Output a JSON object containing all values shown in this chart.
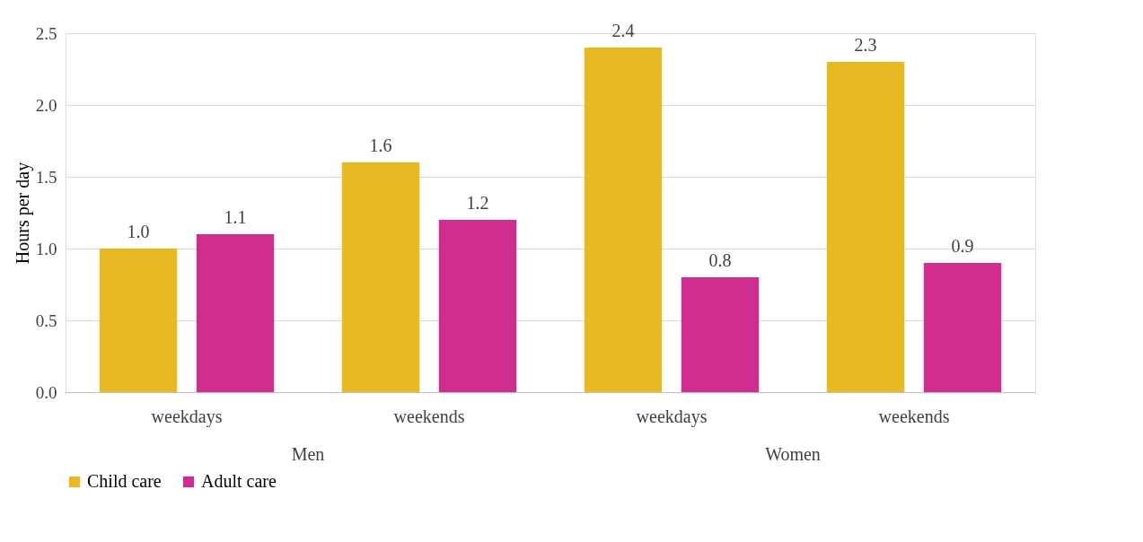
{
  "chart_data": {
    "type": "bar",
    "ylabel": "Hours per day",
    "categories": [
      "weekdays",
      "weekends",
      "weekdays",
      "weekends"
    ],
    "annotations": [
      "Men",
      "Women"
    ],
    "series": [
      {
        "name": "Child care",
        "color": "#e8b923",
        "values": [
          1.0,
          1.6,
          2.4,
          2.3
        ],
        "value_labels": [
          "1.0",
          "1.6",
          "2.4",
          "2.3"
        ]
      },
      {
        "name": "Adult care",
        "color": "#cf2e90",
        "values": [
          1.1,
          1.2,
          0.8,
          0.9
        ],
        "value_labels": [
          "1.1",
          "1.2",
          "0.8",
          "0.9"
        ]
      }
    ],
    "ylim": [
      0,
      2.5
    ],
    "yticks": [
      {
        "value": 0,
        "label": "0.0"
      },
      0.5,
      {
        "value": 1,
        "label": "1.0"
      },
      1.5,
      {
        "value": 2,
        "label": "2.0"
      },
      2.5
    ],
    "grid": "y",
    "legend": "bottom"
  }
}
